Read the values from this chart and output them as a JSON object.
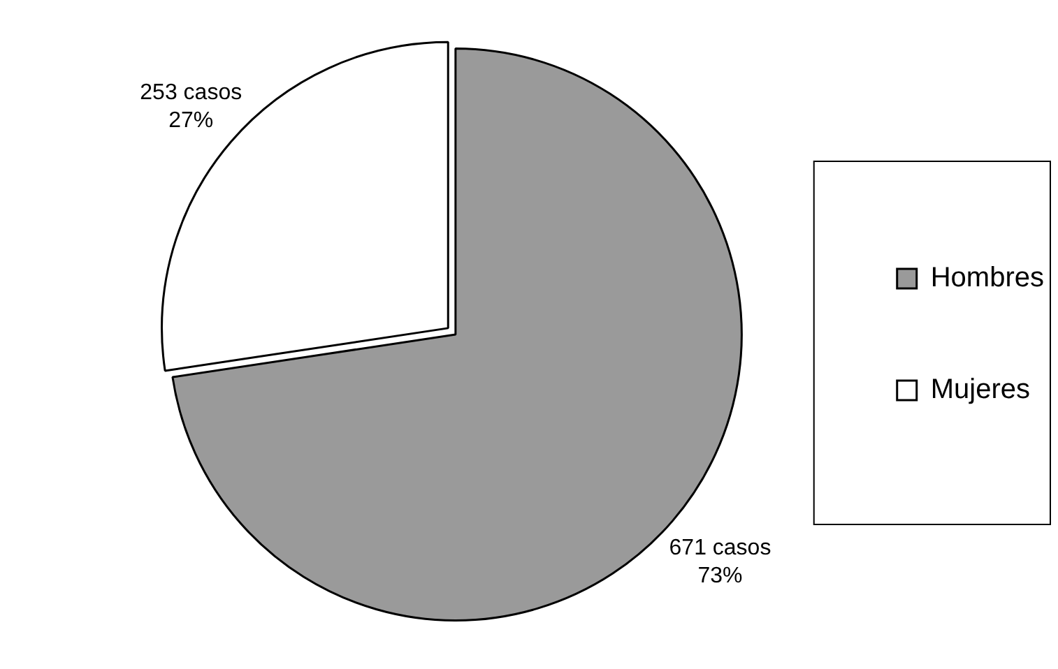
{
  "chart_data": {
    "type": "pie",
    "categories": [
      "Hombres",
      "Mujeres"
    ],
    "values": [
      671,
      253
    ],
    "colors": [
      "#9a9a9a",
      "#ffffff"
    ],
    "value_labels": [
      "671 casos\n73%",
      "253 casos\n27%"
    ],
    "legend": "right"
  }
}
